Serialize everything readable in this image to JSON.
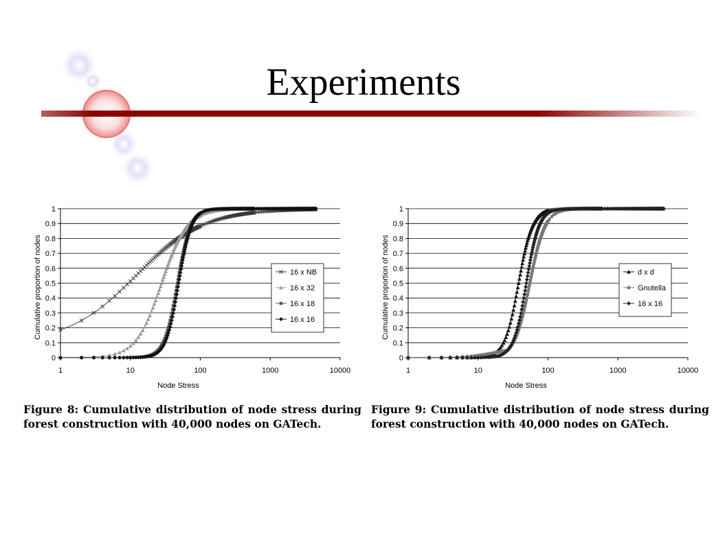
{
  "slide": {
    "title": "Experiments"
  },
  "chart_data": [
    {
      "type": "line",
      "xlabel": "Node Stress",
      "ylabel": "Cumulative proportion of nodes",
      "xscale": "log",
      "xlim": [
        1,
        10000
      ],
      "ylim": [
        0,
        1
      ],
      "x_ticks": [
        "1",
        "10",
        "100",
        "1000",
        "10000"
      ],
      "y_ticks": [
        "0",
        "0.1",
        "0.2",
        "0.3",
        "0.4",
        "0.5",
        "0.6",
        "0.7",
        "0.8",
        "0.9",
        "1"
      ],
      "gridlines": "horizontal",
      "legend_position": "right",
      "series": [
        {
          "name": "16 x NB",
          "marker": "x",
          "color": "#3a3a3a",
          "median": 12,
          "steepness": 0.9,
          "floor": 0.1
        },
        {
          "name": "16 x 32",
          "marker": "triangle",
          "color": "#9a9a9a",
          "median": 28,
          "steepness": 2.4,
          "floor": 0
        },
        {
          "name": "16 x 18",
          "marker": "square",
          "color": "#555555",
          "median": 47,
          "steepness": 4.6,
          "floor": 0
        },
        {
          "name": "16 x 16",
          "marker": "diamond",
          "color": "#111111",
          "median": 49,
          "steepness": 4.8,
          "floor": 0
        }
      ],
      "x_max": 4500,
      "caption": "Figure 8: Cumulative distribution of node stress during forest construction with 40,000 nodes on GATech."
    },
    {
      "type": "line",
      "xlabel": "Node Stress",
      "ylabel": "Cumulative proportion of nodes",
      "xscale": "log",
      "xlim": [
        1,
        10000
      ],
      "ylim": [
        0,
        1
      ],
      "x_ticks": [
        "1",
        "10",
        "100",
        "1000",
        "10000"
      ],
      "y_ticks": [
        "0",
        "0.1",
        "0.2",
        "0.3",
        "0.4",
        "0.5",
        "0.6",
        "0.7",
        "0.8",
        "0.9",
        "1"
      ],
      "gridlines": "horizontal",
      "legend_position": "right",
      "series": [
        {
          "name": "d x d",
          "marker": "triangle",
          "color": "#111111",
          "median": 38,
          "steepness": 4.4,
          "floor": 0
        },
        {
          "name": "Gnutella",
          "marker": "square",
          "color": "#777777",
          "median": 55,
          "steepness": 4.0,
          "floor": 0,
          "early_tail": 0.07
        },
        {
          "name": "16 x 16",
          "marker": "diamond",
          "color": "#222222",
          "median": 49,
          "steepness": 4.8,
          "floor": 0
        }
      ],
      "x_max": 4500,
      "caption": "Figure 9: Cumulative distribution of node stress during forest construction with 40,000 nodes on GATech."
    }
  ]
}
